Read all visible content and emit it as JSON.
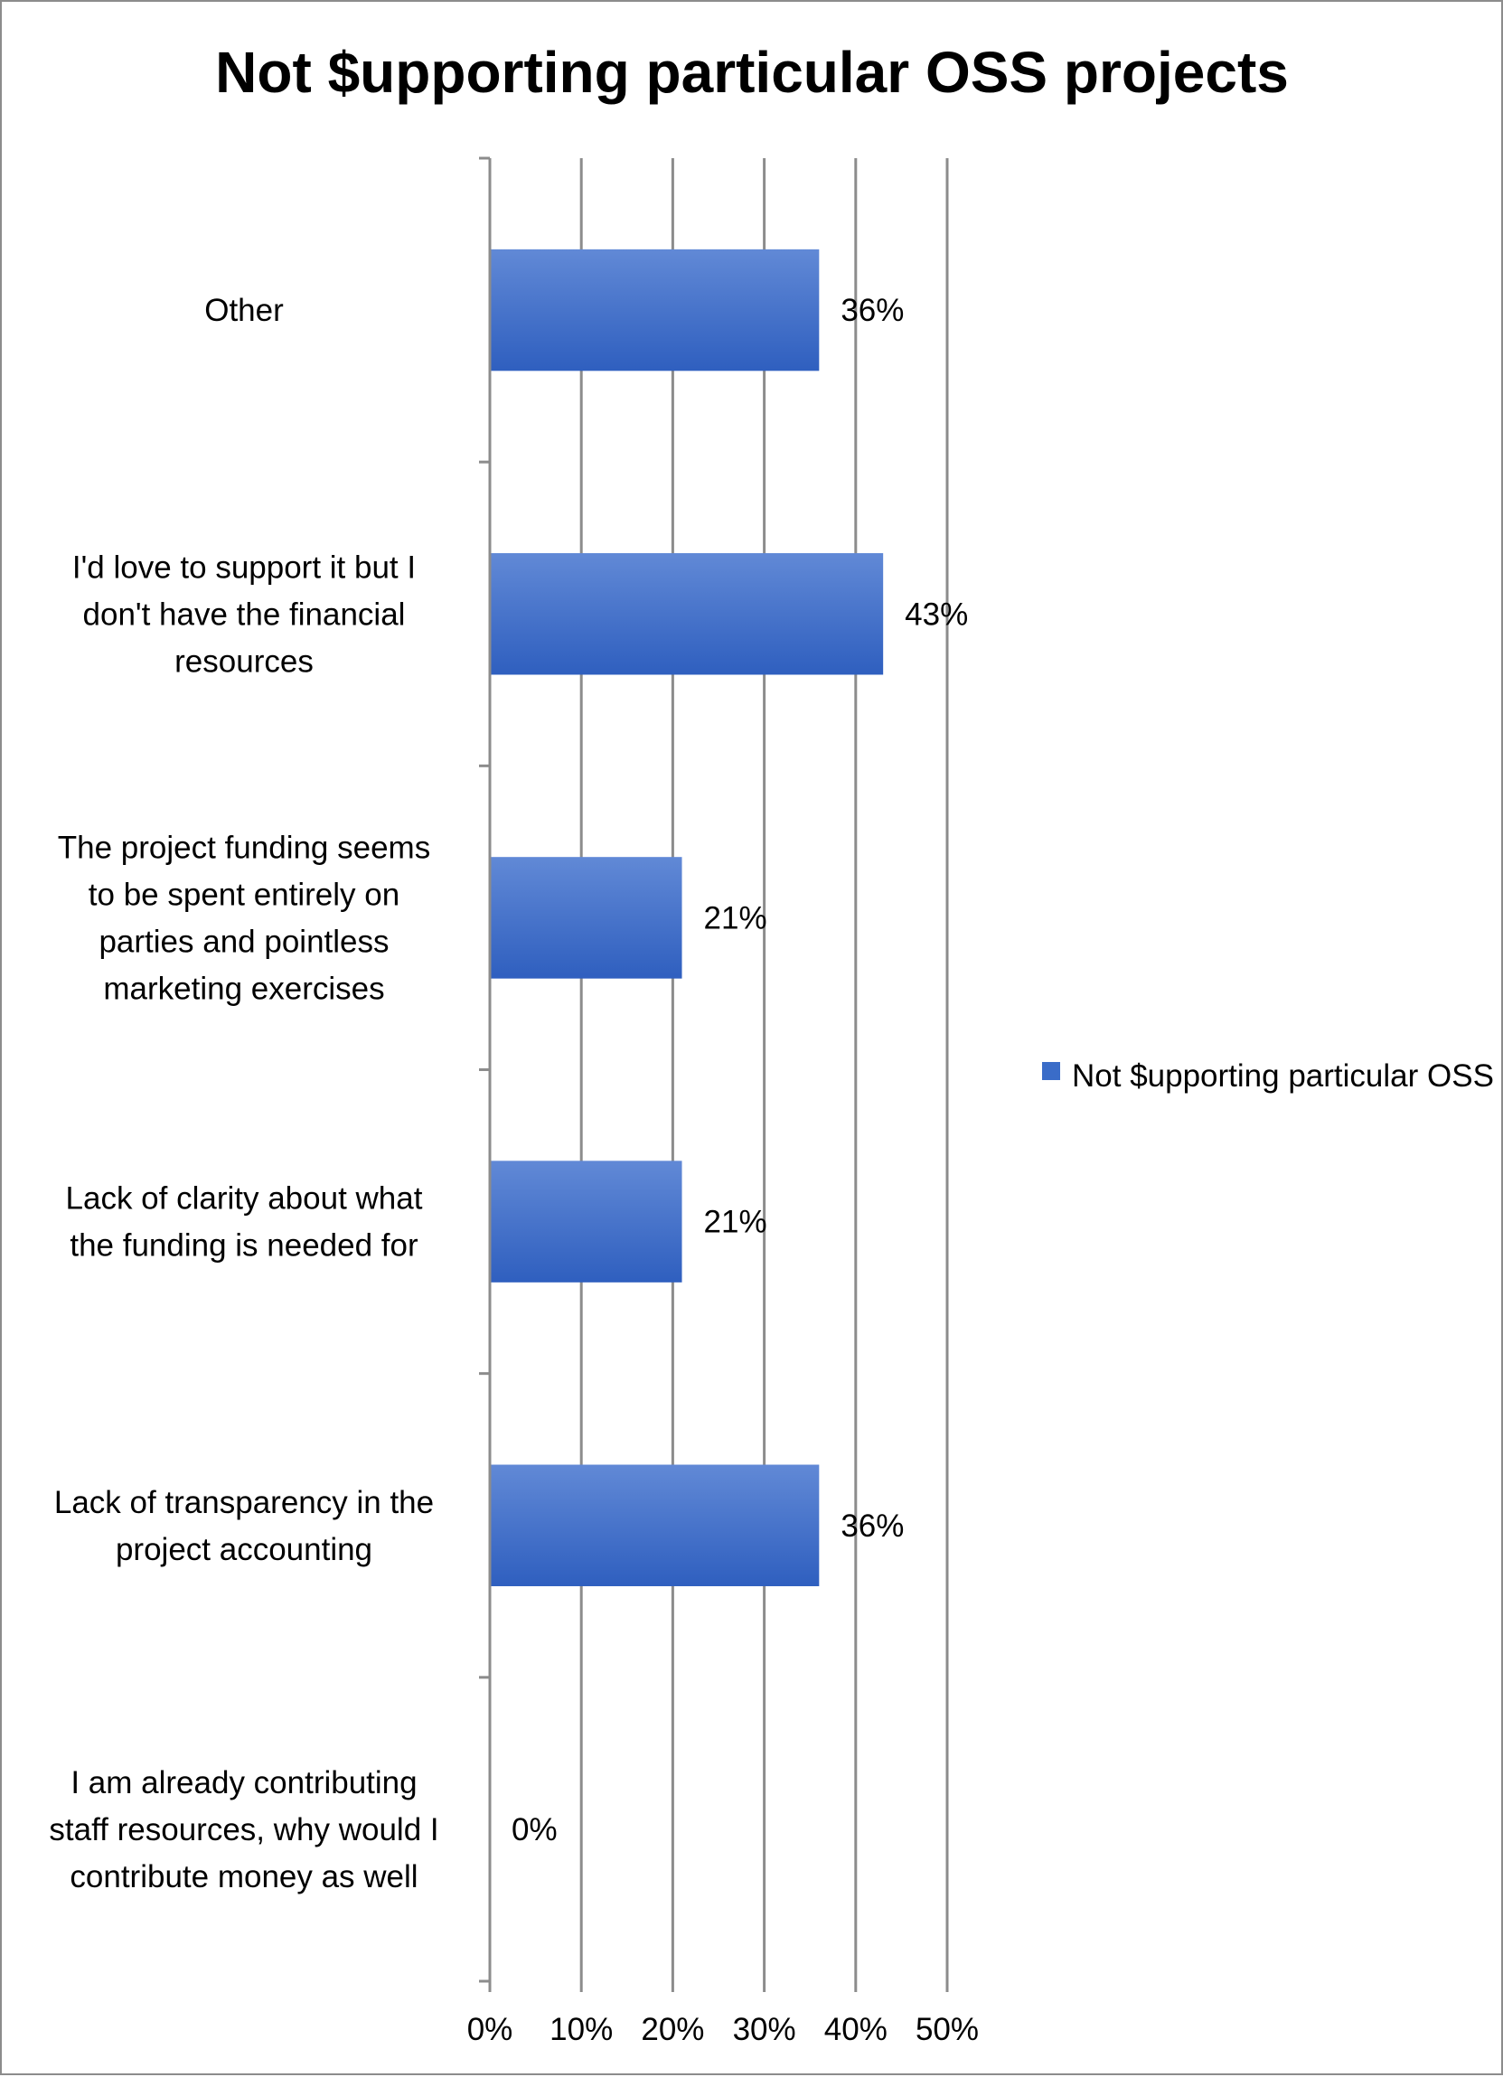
{
  "chart_data": {
    "type": "bar",
    "orientation": "horizontal",
    "title": "Not $upporting particular OSS projects",
    "categories": [
      "Other",
      "I'd love to support it but I don't have the financial resources",
      "The project funding seems to be spent entirely on parties and pointless marketing exercises",
      "Lack of clarity about what the funding is needed for",
      "Lack of transparency in the project accounting",
      "I am already contributing staff resources, why would I contribute money as well"
    ],
    "category_lines": [
      [
        "Other"
      ],
      [
        "I'd love to support it but I",
        "don't have the financial",
        "resources"
      ],
      [
        "The project funding seems",
        "to be spent entirely on",
        "parties and pointless",
        "marketing exercises"
      ],
      [
        "Lack of clarity about what",
        "the funding is needed for"
      ],
      [
        "Lack of transparency in the",
        "project accounting"
      ],
      [
        "I am already contributing",
        "staff resources, why would I",
        "contribute money as well"
      ]
    ],
    "series": [
      {
        "name": "Not $upporting particular OSS projects",
        "values": [
          36,
          43,
          21,
          21,
          36,
          0
        ],
        "data_labels": [
          "36%",
          "43%",
          "21%",
          "21%",
          "36%",
          "0%"
        ]
      }
    ],
    "xlim": [
      0,
      50
    ],
    "x_ticks": [
      0,
      10,
      20,
      30,
      40,
      50
    ],
    "x_tick_labels": [
      "0%",
      "10%",
      "20%",
      "30%",
      "40%",
      "50%"
    ],
    "grid": true,
    "legend_position": "right",
    "colors": {
      "bar": "#3a6cc8",
      "bar_light": "#6189d6",
      "bar_dark": "#2f5fbf",
      "grid": "#8c8c8c",
      "axis": "#8c8c8c"
    }
  }
}
